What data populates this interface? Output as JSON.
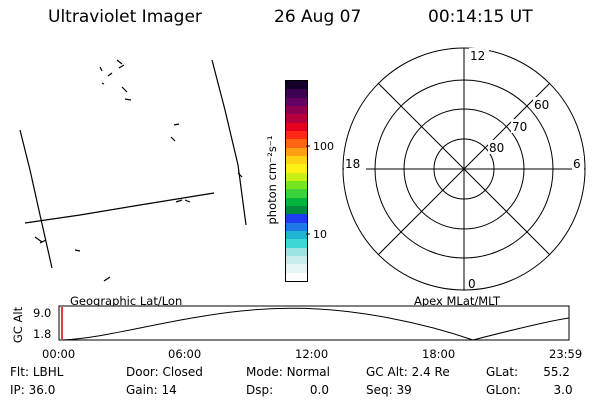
{
  "header": {
    "title": "Ultraviolet Imager",
    "date": "26 Aug 07",
    "time": "00:14:15 UT"
  },
  "colorbar": {
    "unit_label": "photon cm⁻²s⁻¹",
    "ticks": [
      {
        "value": 100,
        "label": "100"
      },
      {
        "value": 10,
        "label": "10"
      }
    ],
    "scale": "log",
    "colors": [
      "#ffffff",
      "#e6f6f6",
      "#c8ecec",
      "#9be3e3",
      "#3fd6d6",
      "#1eb4d2",
      "#1e78e6",
      "#1e3cf0",
      "#008c3c",
      "#00b43c",
      "#3cd23c",
      "#78e61e",
      "#c8f014",
      "#fff014",
      "#ffd214",
      "#ffa014",
      "#ff6414",
      "#ff2814",
      "#e6001e",
      "#b4003c",
      "#8c0050",
      "#640064",
      "#3c0050",
      "#140028"
    ]
  },
  "polar": {
    "mlt_labels": {
      "top": "12",
      "left": "18",
      "right": "6",
      "bottom": "0"
    },
    "lat_labels": [
      "60",
      "70",
      "80"
    ]
  },
  "timeline": {
    "axis_label": "GC Alt",
    "y_ticks": [
      "9.0",
      "1.8"
    ],
    "left_label": "Geographic Lat/Lon",
    "right_label": "Apex MLat/MLT",
    "x_ticks": [
      "00:00",
      "06:00",
      "12:00",
      "18:00",
      "23:59"
    ]
  },
  "info": {
    "row1": [
      {
        "label": "Flt:",
        "value": "LBHL"
      },
      {
        "label": "Door:",
        "value": "Closed"
      },
      {
        "label": "Mode:",
        "value": "Normal"
      },
      {
        "label": "GC Alt:",
        "value": "2.4 Re"
      },
      {
        "label": "GLat:",
        "value": "55.2"
      }
    ],
    "row2": [
      {
        "label": "IP:",
        "value": "36.0"
      },
      {
        "label": "Gain:",
        "value": "14"
      },
      {
        "label": "Dsp:",
        "value": "0.0"
      },
      {
        "label": "Seq:",
        "value": "39"
      },
      {
        "label": "GLon:",
        "value": "3.0"
      }
    ]
  },
  "colors": {
    "marker": "#cc0000",
    "line": "#000000"
  }
}
